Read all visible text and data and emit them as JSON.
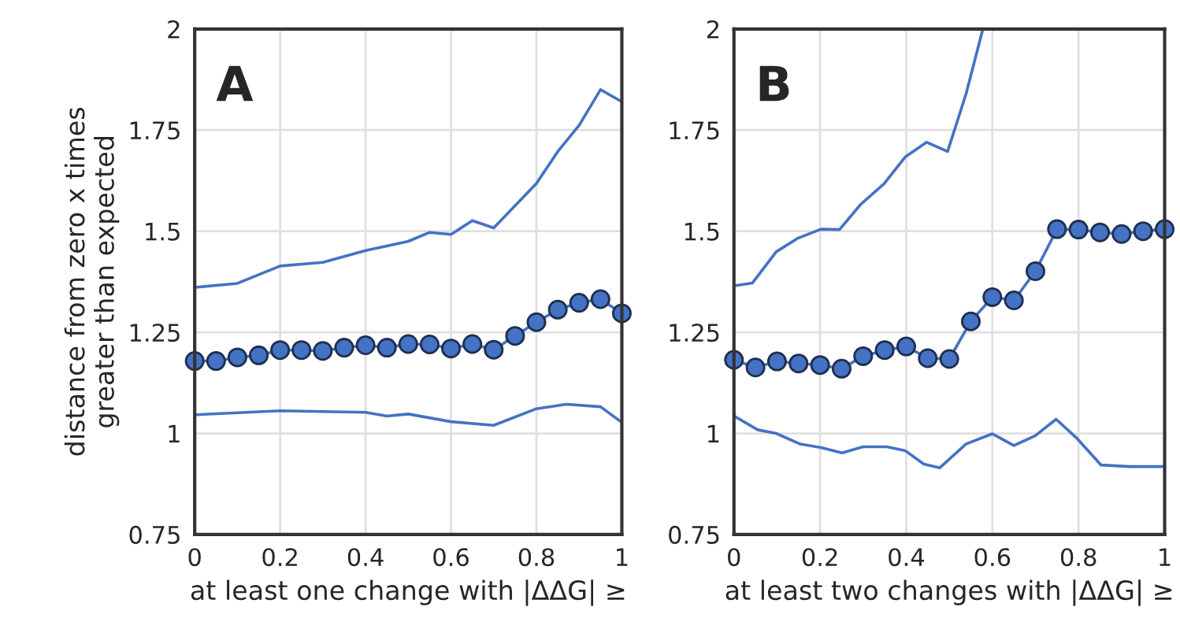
{
  "chart_data": [
    {
      "type": "line",
      "ylabel": "distance from zero x times\ngreater than expected",
      "xlabel": "at least one change with |ΔΔG| ≥",
      "annotations": [
        "A"
      ],
      "xlim": [
        0,
        1
      ],
      "xticks": [
        0,
        0.2,
        0.4,
        0.6,
        0.8,
        1
      ],
      "ylim": [
        0.75,
        2
      ],
      "yticks": [
        0.75,
        1,
        1.25,
        1.5,
        1.75,
        2
      ],
      "grid": true,
      "legend": false,
      "series": [
        {
          "color": "#4472c4",
          "marker": "circle",
          "x": [
            0,
            0.05,
            0.1,
            0.15,
            0.2,
            0.25,
            0.3,
            0.35,
            0.4,
            0.45,
            0.5,
            0.55,
            0.6,
            0.65,
            0.7,
            0.75,
            0.8,
            0.85,
            0.9,
            0.95,
            1
          ],
          "values": [
            1.179,
            1.179,
            1.188,
            1.193,
            1.206,
            1.206,
            1.204,
            1.212,
            1.218,
            1.212,
            1.221,
            1.22,
            1.21,
            1.221,
            1.207,
            1.241,
            1.275,
            1.306,
            1.323,
            1.332,
            1.297
          ]
        },
        {
          "color": "#4472c4",
          "marker": "none",
          "x": [
            0,
            0.1,
            0.2,
            0.3,
            0.4,
            0.5,
            0.55,
            0.6,
            0.65,
            0.7,
            0.8,
            0.85,
            0.9,
            0.95,
            1
          ],
          "values": [
            1.361,
            1.371,
            1.414,
            1.423,
            1.452,
            1.475,
            1.497,
            1.492,
            1.526,
            1.508,
            1.618,
            1.697,
            1.762,
            1.85,
            1.82
          ]
        },
        {
          "color": "#4472c4",
          "marker": "none",
          "x": [
            0,
            0.2,
            0.4,
            0.45,
            0.5,
            0.6,
            0.7,
            0.8,
            0.87,
            0.95,
            1
          ],
          "values": [
            1.046,
            1.056,
            1.052,
            1.043,
            1.048,
            1.029,
            1.02,
            1.061,
            1.072,
            1.066,
            1.027
          ]
        }
      ]
    },
    {
      "type": "line",
      "xlabel": "at least two changes with |ΔΔG| ≥",
      "annotations": [
        "B"
      ],
      "xlim": [
        0,
        1
      ],
      "xticks": [
        0,
        0.2,
        0.4,
        0.6,
        0.8,
        1
      ],
      "ylim": [
        0.75,
        2
      ],
      "yticks": [
        0.75,
        1,
        1.25,
        1.5,
        1.75,
        2
      ],
      "grid": true,
      "legend": false,
      "series": [
        {
          "color": "#4472c4",
          "marker": "circle",
          "x": [
            0,
            0.05,
            0.1,
            0.15,
            0.2,
            0.25,
            0.3,
            0.35,
            0.4,
            0.45,
            0.5,
            0.55,
            0.6,
            0.65,
            0.7,
            0.75,
            0.8,
            0.85,
            0.9,
            0.95,
            1
          ],
          "values": [
            1.182,
            1.163,
            1.178,
            1.173,
            1.169,
            1.16,
            1.191,
            1.206,
            1.215,
            1.186,
            1.184,
            1.277,
            1.337,
            1.329,
            1.401,
            1.505,
            1.504,
            1.497,
            1.493,
            1.5,
            1.505
          ]
        },
        {
          "color": "#4472c4",
          "marker": "none",
          "x": [
            0,
            0.043,
            0.098,
            0.147,
            0.202,
            0.245,
            0.294,
            0.349,
            0.398,
            0.447,
            0.496,
            0.539,
            0.578
          ],
          "values": [
            1.365,
            1.372,
            1.449,
            1.482,
            1.505,
            1.504,
            1.566,
            1.618,
            1.684,
            1.72,
            1.697,
            1.84,
            2.0
          ]
        },
        {
          "color": "#4472c4",
          "marker": "none",
          "x": [
            0,
            0.055,
            0.098,
            0.153,
            0.202,
            0.251,
            0.3,
            0.355,
            0.398,
            0.441,
            0.478,
            0.539,
            0.6,
            0.65,
            0.699,
            0.748,
            0.797,
            0.852,
            0.919,
            1
          ],
          "values": [
            1.043,
            1.009,
            1.0,
            0.974,
            0.965,
            0.952,
            0.967,
            0.967,
            0.957,
            0.924,
            0.915,
            0.974,
            0.999,
            0.97,
            0.994,
            1.035,
            0.987,
            0.922,
            0.918,
            0.918
          ]
        }
      ]
    }
  ]
}
